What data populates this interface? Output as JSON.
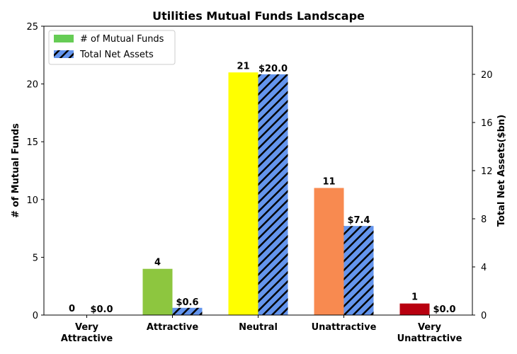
{
  "chart_data": {
    "type": "bar",
    "title": "Utilities Mutual Funds Landscape",
    "categories": [
      [
        "Very",
        "Attractive"
      ],
      [
        "Attractive"
      ],
      [
        "Neutral"
      ],
      [
        "Unattractive"
      ],
      [
        "Very",
        "Unattractive"
      ]
    ],
    "series": [
      {
        "name": "# of Mutual Funds",
        "axis": "left",
        "values": [
          0,
          4,
          21,
          11,
          1
        ],
        "labels": [
          "0",
          "4",
          "21",
          "11",
          "1"
        ],
        "colors": [
          "#2e8b2e",
          "#8dc63f",
          "#ffff00",
          "#f88a50",
          "#b8000f"
        ],
        "legend_color": "#66cc55"
      },
      {
        "name": "Total Net Assets",
        "axis": "right",
        "values": [
          0.0,
          0.6,
          20.0,
          7.4,
          0.0
        ],
        "labels": [
          "$0.0",
          "$0.6",
          "$20.0",
          "$7.4",
          "$0.0"
        ],
        "color": "#6495ed",
        "hatch": "diagonal"
      }
    ],
    "ylabel_left": "# of Mutual Funds",
    "ylabel_right": "Total Net Assets($bn)",
    "ylim_left": [
      0,
      25
    ],
    "yticks_left": [
      0,
      5,
      10,
      15,
      20,
      25
    ],
    "ylim_right": [
      0,
      24
    ],
    "yticks_right": [
      0,
      4,
      8,
      12,
      16,
      20
    ],
    "legend_position": "top-left",
    "grid": false
  }
}
